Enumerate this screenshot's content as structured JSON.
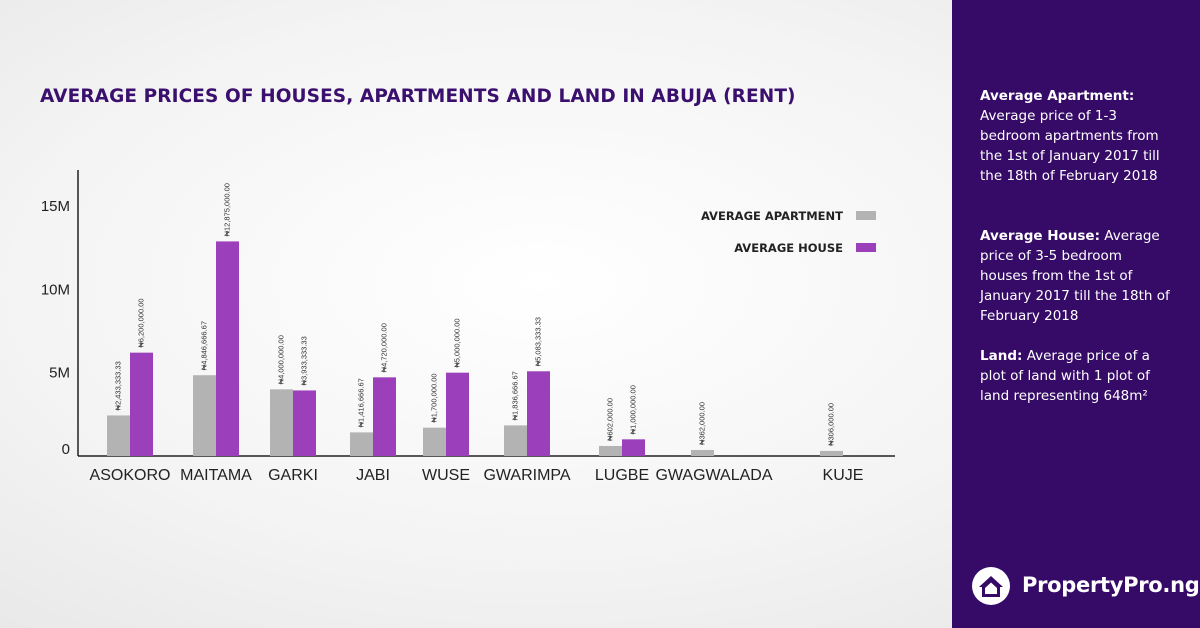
{
  "chart_data": {
    "type": "bar",
    "title": "AVERAGE PRICES OF HOUSES, APARTMENTS AND LAND IN ABUJA (RENT)",
    "categories": [
      "ASOKORO",
      "MAITAMA",
      "GARKI",
      "JABI",
      "WUSE",
      "GWARIMPA",
      "LUGBE",
      "GWAGWALADA",
      "KUJE"
    ],
    "series": [
      {
        "name": "AVERAGE APARTMENT",
        "color": "#b3b3b3",
        "values": [
          2433333.33,
          4846666.67,
          4000000,
          1416666.67,
          1700000,
          1836666.67,
          602000,
          362000,
          306000
        ],
        "labels": [
          "₦2,433,333.33",
          "₦4,846,666.67",
          "₦4,000,000.00",
          "₦1,416,666.67",
          "₦1,700,000.00",
          "₦1,836,666.67",
          "₦602,000.00",
          "₦362,000.00",
          "₦306,000.00"
        ]
      },
      {
        "name": "AVERAGE HOUSE",
        "color": "#9b3fba",
        "values": [
          6200000,
          12875000,
          3933333.33,
          4720000,
          5000000,
          5083333.33,
          1000000,
          null,
          null
        ],
        "labels": [
          "₦6,200,000.00",
          "₦12,875,000.00",
          "₦3,933,333.33",
          "₦4,720,000.00",
          "₦5,000,000.00",
          "₦5,083,333.33",
          "₦1,000,000.00",
          "",
          ""
        ]
      }
    ],
    "yticks": [
      {
        "value": 0,
        "label": "0"
      },
      {
        "value": 5000000,
        "label": "5M"
      },
      {
        "value": 10000000,
        "label": "10M"
      },
      {
        "value": 15000000,
        "label": "15M"
      }
    ],
    "ylim": [
      0,
      16000000
    ],
    "xlabel": "",
    "ylabel": "",
    "legend": "top-right",
    "grid": false
  },
  "sidebar": {
    "apartment_title": "Average Apartment:",
    "apartment_text": "Average price of 1-3 bedroom apartments from the 1st of January 2017 till the 18th of February 2018",
    "house_title": "Average House:",
    "house_text": "Average price of  3-5 bedroom houses from the 1st of January 2017 till the 18th of February 2018",
    "land_title": "Land:",
    "land_text": "Average price of a plot of land with 1 plot of land representing 648m²"
  },
  "brand": {
    "name": "PropertyPro.ng",
    "icon": "house-logo-icon"
  },
  "colors": {
    "sidebar": "#360a67",
    "title": "#3a0f6e",
    "apartment": "#b3b3b3",
    "house": "#9b3fba"
  }
}
